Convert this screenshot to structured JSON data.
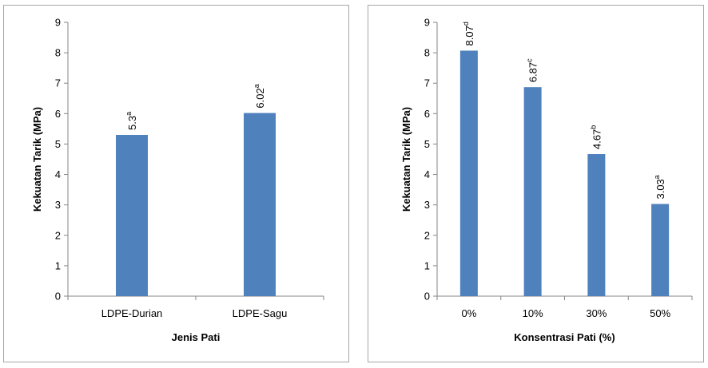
{
  "chart_data": [
    {
      "type": "bar",
      "categories": [
        "LDPE-Durian",
        "LDPE-Sagu"
      ],
      "values": [
        5.3,
        6.02
      ],
      "data_labels": [
        {
          "value": "5.3",
          "sup": "a"
        },
        {
          "value": "6.02",
          "sup": "a"
        }
      ],
      "xlabel": "Jenis Pati",
      "ylabel": "Kekuatan Tarik (MPa)",
      "ylim": [
        0,
        9
      ],
      "yticks": [
        "0",
        "1",
        "2",
        "3",
        "4",
        "5",
        "6",
        "7",
        "8",
        "9"
      ],
      "grid": false,
      "bar_color": "#4f81bd"
    },
    {
      "type": "bar",
      "categories": [
        "0%",
        "10%",
        "30%",
        "50%"
      ],
      "values": [
        8.07,
        6.87,
        4.67,
        3.03
      ],
      "data_labels": [
        {
          "value": "8.07",
          "sup": "d"
        },
        {
          "value": "6.87",
          "sup": "c"
        },
        {
          "value": "4.67",
          "sup": "b"
        },
        {
          "value": "3.03",
          "sup": "a"
        }
      ],
      "xlabel": "Konsentrasi Pati (%)",
      "ylabel": "Kekuatan Tarik (MPa)",
      "ylim": [
        0,
        9
      ],
      "yticks": [
        "0",
        "1",
        "2",
        "3",
        "4",
        "5",
        "6",
        "7",
        "8",
        "9"
      ],
      "grid": false,
      "bar_color": "#4f81bd"
    }
  ]
}
